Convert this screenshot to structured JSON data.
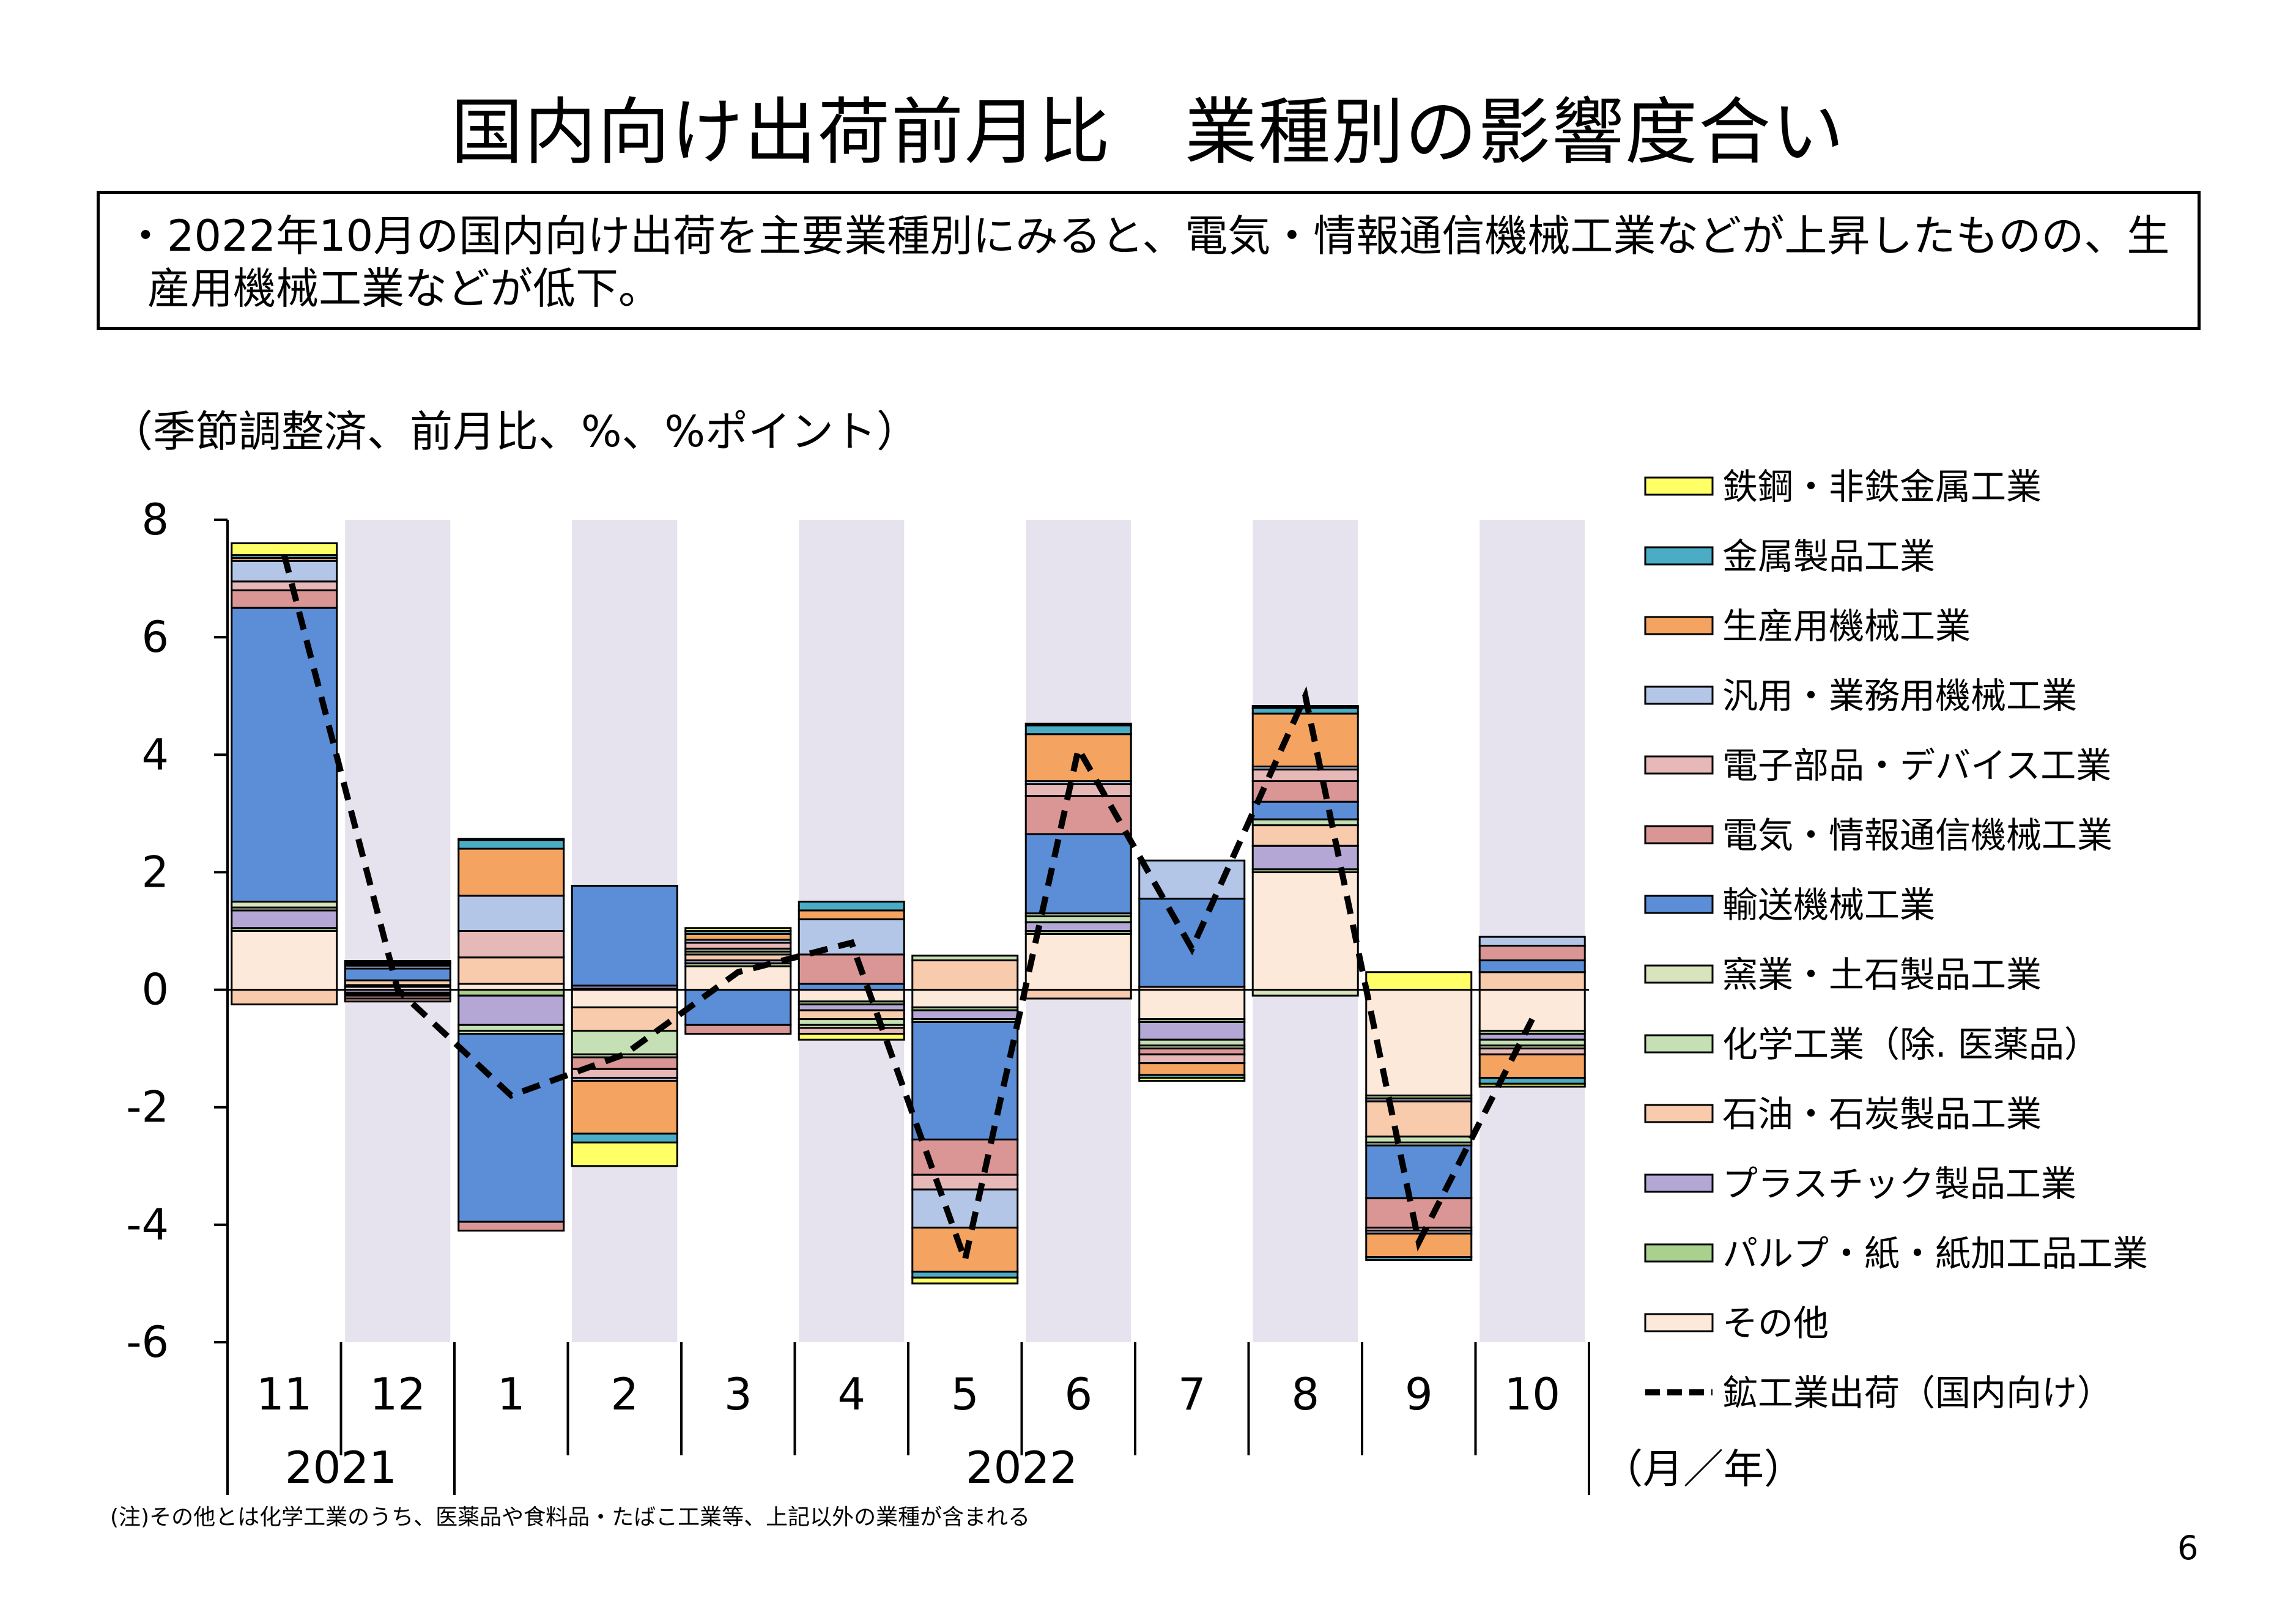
{
  "page": {
    "title": "国内向け出荷前月比　業種別の影響度合い",
    "summary": "・2022年10月の国内向け出荷を主要業種別にみると、電気・情報通信機械工業などが上昇したものの、生産用機械工業などが低下。",
    "unit_note": "（季節調整済、前月比、%、%ポイント）",
    "footnote": "(注)その他とは化学工業のうち、医薬品や食料品・たばこ工業等、上記以外の業種が含まれる",
    "page_number": "6",
    "axis_unit_label": "（月／年）"
  },
  "chart_data": {
    "type": "bar",
    "stacked": true,
    "title": "",
    "xlabel": "",
    "ylabel": "",
    "ylim": [
      -6,
      8
    ],
    "yticks": [
      8,
      6,
      4,
      2,
      0,
      -2,
      -4,
      -6
    ],
    "categories": [
      "11",
      "12",
      "1",
      "2",
      "3",
      "4",
      "5",
      "6",
      "7",
      "8",
      "9",
      "10"
    ],
    "years": [
      {
        "label": "2021",
        "from": 0,
        "to": 1
      },
      {
        "label": "2022",
        "from": 2,
        "to": 11
      }
    ],
    "shaded_categories": [
      1,
      3,
      5,
      7,
      9,
      11
    ],
    "shade_color": "#e6e2ee",
    "legend_position": "right",
    "series": [
      {
        "name": "その他",
        "color": "#fde9d9",
        "values": [
          1.0,
          0.05,
          0.1,
          -0.3,
          0.4,
          -0.2,
          -0.3,
          0.95,
          -0.5,
          2.0,
          -1.8,
          -0.7
        ]
      },
      {
        "name": "パルプ・紙・紙加工品工業",
        "color": "#a9d18e",
        "values": [
          0.05,
          0.03,
          -0.1,
          0.02,
          0.05,
          -0.05,
          -0.05,
          0.05,
          -0.05,
          0.05,
          -0.05,
          -0.05
        ]
      },
      {
        "name": "プラスチック製品工業",
        "color": "#b4a7d6",
        "values": [
          0.3,
          -0.05,
          -0.5,
          0.05,
          0.05,
          -0.1,
          -0.15,
          0.15,
          -0.3,
          0.4,
          -0.05,
          -0.1
        ]
      },
      {
        "name": "石油・石炭製品工業",
        "color": "#f8cbad",
        "values": [
          -0.25,
          0.08,
          0.45,
          -0.4,
          0.1,
          -0.15,
          0.5,
          -0.15,
          0.05,
          0.35,
          -0.6,
          0.3
        ]
      },
      {
        "name": "化学工業（除. 医薬品）",
        "color": "#c5e0b4",
        "values": [
          0.05,
          -0.02,
          -0.1,
          -0.4,
          0.05,
          -0.1,
          0.08,
          0.1,
          -0.1,
          0.1,
          -0.1,
          -0.1
        ]
      },
      {
        "name": "窯業・土石製品工業",
        "color": "#d8e4bc",
        "values": [
          0.1,
          -0.03,
          -0.05,
          -0.05,
          0.05,
          -0.05,
          -0.05,
          0.05,
          -0.05,
          -0.1,
          -0.05,
          -0.05
        ]
      },
      {
        "name": "輸送機械工業",
        "color": "#5b8ed6",
        "values": [
          5.0,
          0.2,
          -3.2,
          1.7,
          -0.6,
          0.1,
          -2.0,
          1.35,
          1.5,
          0.3,
          -0.9,
          0.2
        ]
      },
      {
        "name": "電気・情報通信機械工業",
        "color": "#da9694",
        "values": [
          0.3,
          -0.05,
          -0.15,
          -0.2,
          -0.15,
          0.5,
          -0.6,
          0.65,
          -0.1,
          0.35,
          -0.5,
          0.25
        ]
      },
      {
        "name": "電子部品・デバイス工業",
        "color": "#e6b8b7",
        "values": [
          0.15,
          -0.05,
          0.45,
          -0.15,
          0.1,
          -0.1,
          -0.25,
          0.2,
          -0.15,
          0.2,
          -0.05,
          -0.1
        ]
      },
      {
        "name": "汎用・業務用機械工業",
        "color": "#b4c6e7",
        "values": [
          0.35,
          0.05,
          0.6,
          -0.05,
          0.05,
          0.6,
          -0.65,
          0.05,
          0.65,
          0.05,
          -0.05,
          0.15
        ]
      },
      {
        "name": "生産用機械工業",
        "color": "#f4a460",
        "values": [
          0.05,
          0.03,
          0.8,
          -0.9,
          0.1,
          0.15,
          -0.75,
          0.8,
          -0.2,
          0.9,
          -0.4,
          -0.4
        ]
      },
      {
        "name": "金属製品工業",
        "color": "#4bacc6",
        "values": [
          0.05,
          0.02,
          0.15,
          -0.15,
          0.05,
          0.15,
          -0.1,
          0.15,
          -0.05,
          0.1,
          -0.05,
          -0.1
        ]
      },
      {
        "name": "鉄鋼・非鉄金属工業",
        "color": "#ffff66",
        "values": [
          0.2,
          0.03,
          0.02,
          -0.4,
          0.05,
          -0.1,
          -0.1,
          0.03,
          -0.05,
          0.03,
          0.3,
          -0.05
        ]
      }
    ],
    "line": {
      "name": "鉱工業出荷（国内向け）",
      "color": "#000000",
      "style": "dashed",
      "values": [
        7.4,
        0.0,
        -1.8,
        -1.1,
        0.3,
        0.8,
        -4.6,
        4.1,
        0.7,
        5.0,
        -4.3,
        -0.5
      ]
    },
    "legend_order": [
      "鉄鋼・非鉄金属工業",
      "金属製品工業",
      "生産用機械工業",
      "汎用・業務用機械工業",
      "電子部品・デバイス工業",
      "電気・情報通信機械工業",
      "輸送機械工業",
      "窯業・土石製品工業",
      "化学工業（除. 医薬品）",
      "石油・石炭製品工業",
      "プラスチック製品工業",
      "パルプ・紙・紙加工品工業",
      "その他",
      "鉱工業出荷（国内向け）"
    ]
  }
}
